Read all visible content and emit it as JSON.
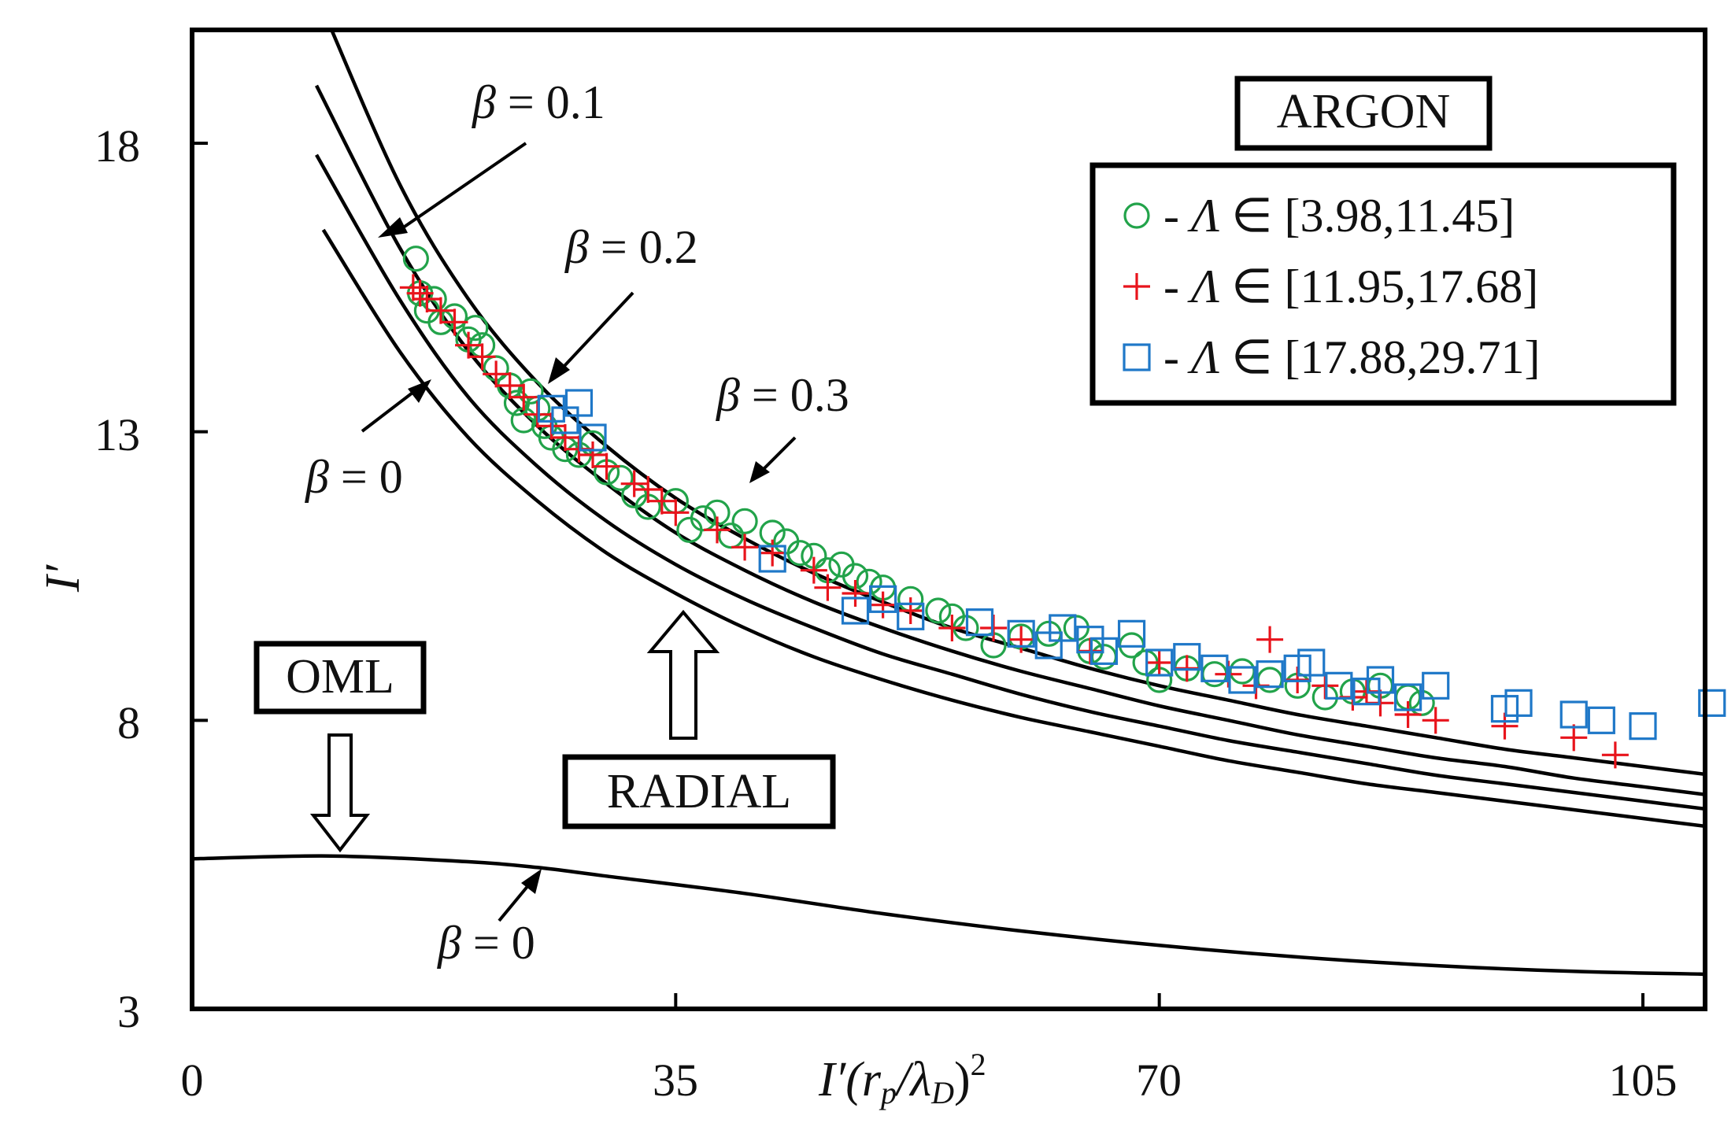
{
  "chart_data": {
    "type": "scatter",
    "xlabel": "I′(rₚ/λᴅ)²",
    "xlabel_parts": {
      "base": "I′(r",
      "sub1": "p",
      "mid": "/λ",
      "sub2": "D",
      "close": ")",
      "sup": "2"
    },
    "ylabel": "I′",
    "xlim": [
      0,
      110
    ],
    "ylim": [
      3,
      20.5
    ],
    "xticks": [
      0,
      35,
      70,
      105
    ],
    "xtick_labels": [
      "0",
      "35",
      "70",
      "105"
    ],
    "yticks": [
      3,
      8,
      13,
      18
    ],
    "ytick_labels": [
      "3",
      "8",
      "13",
      "18"
    ],
    "title_box": "ARGON",
    "legend": [
      {
        "symbol": "o",
        "sep": "-",
        "var": "Λ",
        "rel": "∈",
        "range": "[3.98,11.45]",
        "color": "#22a34a"
      },
      {
        "symbol": "+",
        "sep": "-",
        "var": "Λ",
        "rel": "∈",
        "range": "[11.95,17.68]",
        "color": "#e8141c"
      },
      {
        "symbol": "□",
        "sep": "-",
        "var": "Λ",
        "rel": "∈",
        "range": "[17.88,29.71]",
        "color": "#1f78c8"
      }
    ],
    "curves": [
      {
        "name": "radial beta=0",
        "x": [
          9.5,
          15,
          20,
          25,
          30,
          35,
          40,
          45,
          50,
          55,
          60,
          65,
          70,
          75,
          80,
          85,
          90,
          95,
          100,
          105,
          110
        ],
        "y": [
          16.5,
          14.4,
          12.9,
          11.8,
          10.9,
          10.2,
          9.6,
          9.1,
          8.7,
          8.35,
          8.05,
          7.8,
          7.55,
          7.3,
          7.1,
          6.9,
          6.75,
          6.6,
          6.45,
          6.3,
          6.15
        ]
      },
      {
        "name": "radial beta=0.1",
        "x": [
          9,
          15,
          20,
          25,
          30,
          35,
          40,
          45,
          50,
          55,
          60,
          65,
          70,
          75,
          80,
          85,
          90,
          95,
          100,
          105,
          110
        ],
        "y": [
          17.8,
          15.3,
          13.6,
          12.4,
          11.45,
          10.7,
          10.1,
          9.6,
          9.15,
          8.8,
          8.45,
          8.15,
          7.9,
          7.65,
          7.45,
          7.25,
          7.05,
          6.9,
          6.75,
          6.6,
          6.45
        ]
      },
      {
        "name": "radial beta=0.2",
        "x": [
          9,
          15,
          20,
          25,
          30,
          35,
          40,
          45,
          50,
          55,
          60,
          65,
          70,
          75,
          80,
          85,
          90,
          95,
          100,
          105,
          110
        ],
        "y": [
          19,
          16.2,
          14.4,
          13.1,
          12.1,
          11.25,
          10.6,
          10.05,
          9.6,
          9.2,
          8.85,
          8.55,
          8.25,
          8,
          7.75,
          7.55,
          7.35,
          7.2,
          7,
          6.85,
          6.7
        ]
      },
      {
        "name": "radial beta=0.3",
        "x": [
          9.5,
          15,
          20,
          25,
          30,
          35,
          40,
          45,
          50,
          55,
          60,
          65,
          70,
          75,
          80,
          85,
          90,
          95,
          100,
          105,
          110
        ],
        "y": [
          20.3,
          17.3,
          15.3,
          13.85,
          12.75,
          11.85,
          11.15,
          10.55,
          10.05,
          9.6,
          9.25,
          8.9,
          8.6,
          8.35,
          8.1,
          7.9,
          7.7,
          7.5,
          7.35,
          7.2,
          7.05
        ]
      },
      {
        "name": "OML beta=0",
        "x": [
          0,
          10,
          20,
          25,
          30,
          40,
          50,
          60,
          70,
          80,
          90,
          100,
          110
        ],
        "y": [
          5.6,
          5.65,
          5.55,
          5.45,
          5.3,
          5.0,
          4.65,
          4.35,
          4.1,
          3.9,
          3.75,
          3.65,
          3.6
        ]
      }
    ],
    "series": [
      {
        "name": "Λ ∈ [3.98,11.45]",
        "marker": "circle",
        "color": "#22a34a",
        "x": [
          16.2,
          16.5,
          17,
          17.5,
          18,
          19,
          20,
          20.5,
          21,
          22,
          23,
          23.5,
          24,
          24.5,
          25,
          25.5,
          26,
          27,
          28,
          29,
          30,
          31,
          32,
          33,
          35,
          36,
          37,
          38,
          39,
          40,
          42,
          43,
          44,
          45,
          46,
          47,
          48,
          49,
          50,
          52,
          54,
          55,
          56,
          58,
          60,
          62,
          64,
          65,
          66,
          68,
          69,
          70,
          72,
          74,
          76,
          78,
          80,
          82,
          84,
          86,
          88,
          89
        ],
        "y": [
          16,
          15.4,
          15.1,
          15.3,
          14.9,
          15,
          14.6,
          14.8,
          14.5,
          14.1,
          13.8,
          13.5,
          13.2,
          13.7,
          13.4,
          13.1,
          12.9,
          12.7,
          12.6,
          12.8,
          12.3,
          12.2,
          11.9,
          11.7,
          11.8,
          11.3,
          11.5,
          11.6,
          11.2,
          11.45,
          11.25,
          11.1,
          10.9,
          10.85,
          10.6,
          10.7,
          10.5,
          10.4,
          10.3,
          10.1,
          9.9,
          9.8,
          9.6,
          9.3,
          9.45,
          9.5,
          9.6,
          9.2,
          9.1,
          9.3,
          9.0,
          8.7,
          8.9,
          8.8,
          8.85,
          8.7,
          8.6,
          8.4,
          8.5,
          8.6,
          8.4,
          8.3
        ]
      },
      {
        "name": "Λ ∈ [11.95,17.68]",
        "marker": "plus",
        "color": "#e8141c",
        "x": [
          16,
          16.5,
          17,
          18,
          19,
          20,
          21,
          22,
          23,
          24,
          25,
          26,
          27,
          28,
          29,
          30,
          32,
          33,
          34,
          35,
          38,
          40,
          42,
          45,
          46,
          48,
          50,
          52,
          55,
          58,
          60,
          65,
          70,
          72,
          75,
          77,
          78,
          80,
          82,
          84,
          85,
          86,
          88,
          90,
          95,
          100,
          103
        ],
        "y": [
          15.5,
          15.4,
          15.3,
          15.1,
          14.9,
          14.5,
          14.3,
          14.0,
          13.8,
          13.6,
          13.3,
          13.1,
          12.9,
          12.7,
          12.6,
          12.4,
          12.1,
          12.0,
          11.8,
          11.6,
          11.3,
          11.0,
          10.9,
          10.6,
          10.3,
          10.2,
          10.0,
          9.9,
          9.6,
          9.6,
          9.4,
          9.2,
          9.0,
          8.9,
          8.8,
          8.6,
          9.4,
          8.7,
          8.6,
          8.4,
          8.5,
          8.3,
          8.1,
          8.0,
          7.9,
          7.7,
          7.4
        ]
      },
      {
        "name": "Λ ∈ [17.88,29.71]",
        "marker": "square",
        "color": "#1f78c8",
        "x": [
          26,
          27,
          28,
          29,
          42,
          48,
          50,
          52,
          57,
          60,
          62,
          63,
          65,
          66,
          68,
          70,
          72,
          74,
          76,
          78,
          80,
          81,
          83,
          85,
          86,
          88,
          90,
          95,
          96,
          100,
          102,
          105,
          110
        ],
        "y": [
          13.4,
          13.2,
          13.5,
          12.9,
          10.8,
          9.9,
          10.1,
          9.8,
          9.7,
          9.5,
          9.3,
          9.6,
          9.4,
          9.2,
          9.5,
          9.0,
          9.1,
          8.9,
          8.7,
          8.8,
          8.9,
          9.0,
          8.6,
          8.5,
          8.7,
          8.4,
          8.6,
          8.2,
          8.3,
          8.1,
          8.0,
          7.9,
          8.3
        ]
      }
    ],
    "annotations": {
      "radial_label": "RADIAL",
      "oml_label": "OML",
      "b01": {
        "sym": "β",
        "eq": "= 0.1"
      },
      "b02": {
        "sym": "β",
        "eq": "= 0.2"
      },
      "b03": {
        "sym": "β",
        "eq": "= 0.3"
      },
      "b0_radial": {
        "sym": "β",
        "eq": "= 0"
      },
      "b0_oml": {
        "sym": "β",
        "eq": "= 0"
      }
    }
  }
}
